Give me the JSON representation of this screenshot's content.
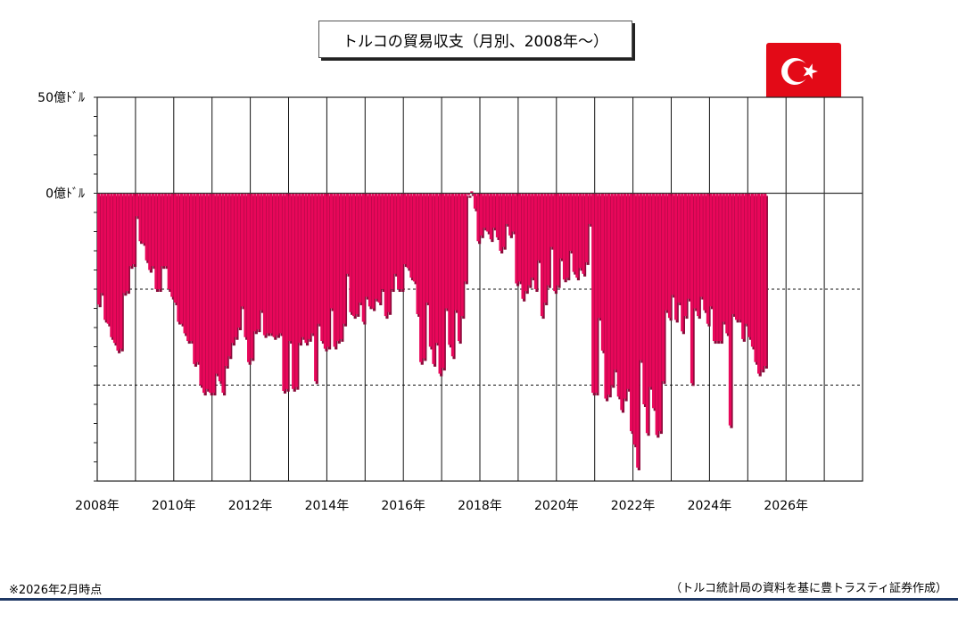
{
  "chart_data": {
    "type": "bar",
    "title": "トルコの貿易収支（月別、2008年～）",
    "y_unit": "億ドル",
    "ylim": [
      -150,
      50
    ],
    "y_ticks": [
      {
        "value": 50,
        "label": "50億ﾄﾞﾙ"
      },
      {
        "value": 0,
        "label": "0億ﾄﾞﾙ"
      },
      {
        "value": -50,
        "label": ""
      },
      {
        "value": -100,
        "label": ""
      },
      {
        "value": -150,
        "label": ""
      }
    ],
    "x_start": "2008-01",
    "x_end_exclusive": "2028-01",
    "x_tick_labels": [
      "2008年",
      "2010年",
      "2012年",
      "2014年",
      "2016年",
      "2018年",
      "2020年",
      "2022年",
      "2024年",
      "2026年"
    ],
    "grid": true,
    "color": "#e8075a",
    "series": [
      {
        "values": [
          -58,
          -52,
          -66,
          -68,
          -75,
          -78,
          -82,
          -81,
          -52,
          -51,
          -38,
          -37,
          -12,
          -25,
          -26,
          -35,
          -40,
          -38,
          -50,
          -50,
          -38,
          -38,
          -50,
          -54,
          -57,
          -67,
          -68,
          -73,
          -77,
          -77,
          -89,
          -88,
          -100,
          -104,
          -102,
          -104,
          -104,
          -94,
          -98,
          -104,
          -90,
          -85,
          -78,
          -75,
          -70,
          -59,
          -75,
          -88,
          -86,
          -72,
          -71,
          -61,
          -74,
          -73,
          -73,
          -75,
          -74,
          -73,
          -103,
          -102,
          -77,
          -102,
          -101,
          -78,
          -75,
          -78,
          -76,
          -73,
          -98,
          -68,
          -77,
          -81,
          -80,
          -60,
          -80,
          -77,
          -76,
          -68,
          -42,
          -62,
          -64,
          -63,
          -57,
          -67,
          -54,
          -59,
          -60,
          -55,
          -57,
          -50,
          -64,
          -62,
          -50,
          -42,
          -50,
          -50,
          -37,
          -39,
          -44,
          -46,
          -63,
          -88,
          -86,
          -57,
          -80,
          -89,
          -78,
          -94,
          -91,
          -60,
          -79,
          -85,
          -61,
          -77,
          -64,
          -46,
          -1,
          1,
          -8,
          -25,
          -22,
          -18,
          -20,
          -24,
          -18,
          -23,
          -30,
          -28,
          -16,
          -22,
          -20,
          -47,
          -46,
          -55,
          -51,
          -48,
          -44,
          -50,
          -35,
          -64,
          -57,
          -48,
          -28,
          -51,
          -48,
          -34,
          -45,
          -44,
          -30,
          -41,
          -44,
          -39,
          -42,
          -36,
          -16,
          -104,
          -104,
          -65,
          -82,
          -107,
          -105,
          -100,
          -92,
          -106,
          -113,
          -107,
          -102,
          -124,
          -131,
          -143,
          -87,
          -110,
          -125,
          -101,
          -112,
          -126,
          -124,
          -98,
          -61,
          -65,
          -53,
          -66,
          -57,
          -72,
          -64,
          -55,
          -99,
          -60,
          -64,
          -54,
          -61,
          -68,
          -59,
          -77,
          -77,
          -77,
          -67,
          -73,
          -121,
          -63,
          -66,
          -66,
          -76,
          -68,
          -75,
          -80,
          -88,
          -94,
          -92,
          -90
        ]
      }
    ]
  },
  "labels": {
    "note": "※2026年2月時点",
    "source": "（トルコ統計局の資料を基に豊トラスティ証券作成）"
  },
  "flag": {
    "icon": "turkey-flag-icon",
    "red": "#e30a17"
  }
}
